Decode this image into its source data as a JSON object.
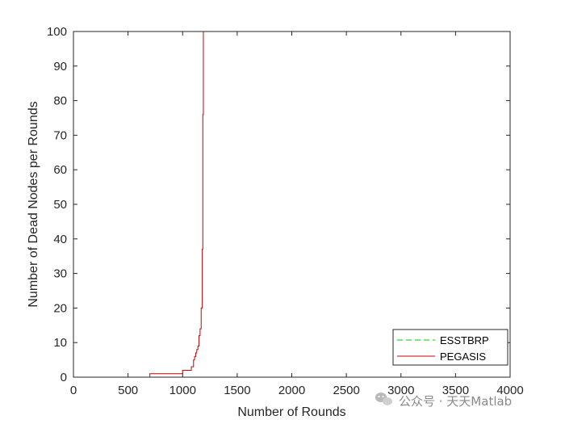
{
  "chart_data": {
    "type": "line",
    "title": "",
    "xlabel": "Number of Rounds",
    "ylabel": "Number of Dead Nodes per Rounds",
    "xlim": [
      0,
      4000
    ],
    "ylim": [
      0,
      100
    ],
    "xticks": [
      0,
      500,
      1000,
      1500,
      2000,
      2500,
      3000,
      3500,
      4000
    ],
    "yticks": [
      0,
      10,
      20,
      30,
      40,
      50,
      60,
      70,
      80,
      90,
      100
    ],
    "grid": false,
    "legend_position": "bottom-right",
    "series": [
      {
        "name": "ESSTBRP",
        "color": "#00cc00",
        "line_style": "dashed",
        "x": [
          0,
          4000
        ],
        "y": [
          0,
          0
        ]
      },
      {
        "name": "PEGASIS",
        "color": "#cc0000",
        "line_style": "solid",
        "step": true,
        "x": [
          0,
          700,
          1000,
          1080,
          1100,
          1110,
          1120,
          1130,
          1140,
          1150,
          1160,
          1170,
          1180,
          1185,
          1190,
          4000
        ],
        "y": [
          0,
          1,
          2,
          3,
          5,
          6,
          7,
          8,
          9,
          12,
          14,
          20,
          37,
          76,
          100,
          100
        ]
      }
    ]
  },
  "watermark": {
    "icon": "wechat-icon",
    "text": "公众号 · 天天Matlab"
  }
}
